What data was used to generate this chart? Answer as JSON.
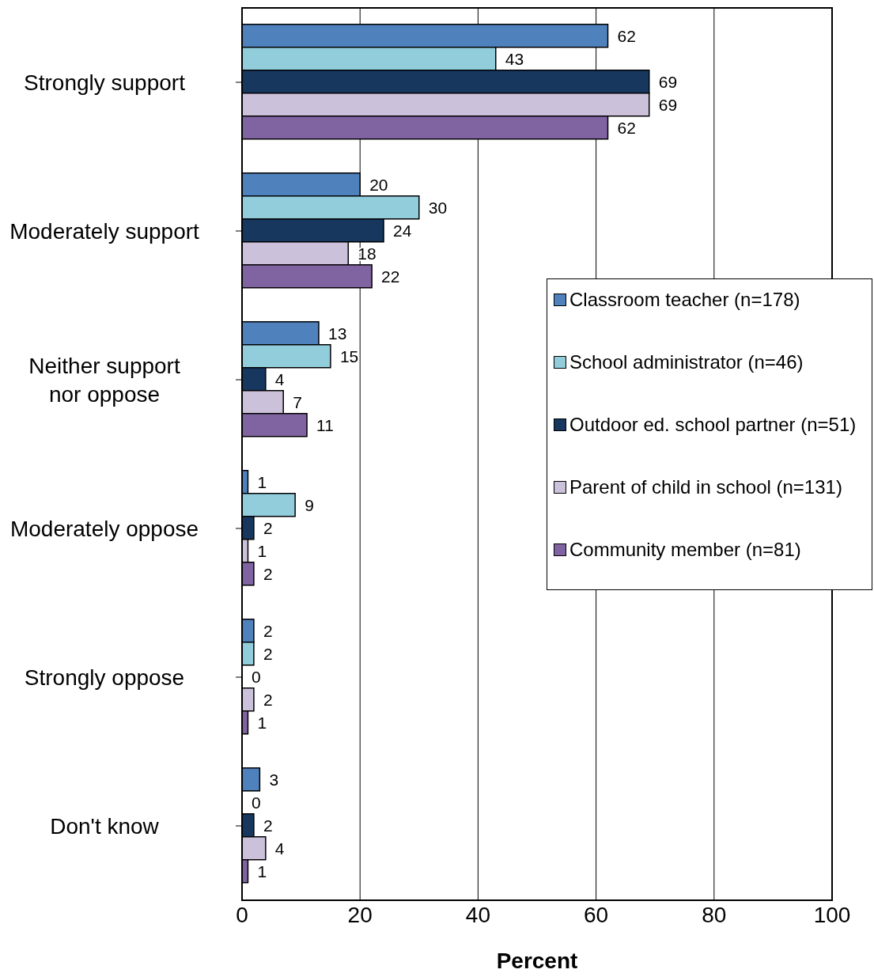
{
  "chart_data": {
    "type": "bar",
    "orientation": "horizontal",
    "xlabel": "Percent",
    "categories": [
      "Strongly support",
      "Moderately support",
      "Neither support nor oppose",
      "Moderately oppose",
      "Strongly oppose",
      "Don't know"
    ],
    "series": [
      {
        "name": "Classroom teacher (n=178)",
        "color": "#4f81bd",
        "values": [
          62,
          20,
          13,
          1,
          2,
          3
        ]
      },
      {
        "name": "School administrator (n=46)",
        "color": "#92cddc",
        "values": [
          43,
          30,
          15,
          9,
          2,
          0
        ]
      },
      {
        "name": "Outdoor ed. school partner (n=51)",
        "color": "#17375e",
        "values": [
          69,
          24,
          4,
          2,
          0,
          2
        ]
      },
      {
        "name": "Parent of child in school (n=131)",
        "color": "#ccc1da",
        "values": [
          69,
          18,
          7,
          1,
          2,
          4
        ]
      },
      {
        "name": "Community member (n=81)",
        "color": "#8064a2",
        "values": [
          62,
          22,
          11,
          2,
          1,
          1
        ]
      }
    ],
    "xlim": [
      0,
      100
    ],
    "xticks": [
      0,
      20,
      40,
      60,
      80,
      100
    ],
    "grid": "x",
    "legend": "right",
    "data_labels": true
  }
}
